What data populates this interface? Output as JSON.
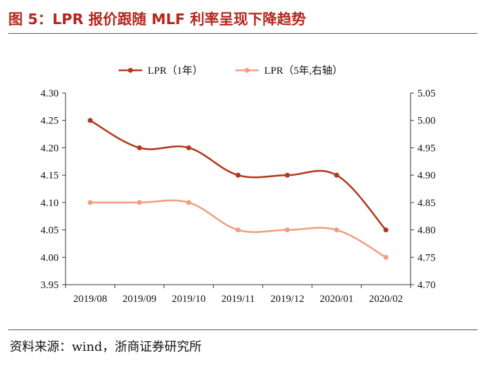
{
  "title": "图 5：LPR 报价跟随 MLF 利率呈现下降趋势",
  "source": "资料来源：wind，浙商证券研究所",
  "chart_data": {
    "type": "line",
    "categories": [
      "2019/08",
      "2019/09",
      "2019/10",
      "2019/11",
      "2019/12",
      "2020/01",
      "2020/02"
    ],
    "series": [
      {
        "name": "LPR（1年）",
        "axis": "left",
        "color": "#b03a1e",
        "values": [
          4.25,
          4.2,
          4.2,
          4.15,
          4.15,
          4.15,
          4.05
        ]
      },
      {
        "name": "LPR（5年,右轴）",
        "axis": "right",
        "color": "#f0a080",
        "values": [
          4.85,
          4.85,
          4.85,
          4.8,
          4.8,
          4.8,
          4.75
        ]
      }
    ],
    "left_axis": {
      "ylim": [
        3.95,
        4.3
      ],
      "ticks": [
        "3.95",
        "4.00",
        "4.05",
        "4.10",
        "4.15",
        "4.20",
        "4.25",
        "4.30"
      ]
    },
    "right_axis": {
      "ylim": [
        4.7,
        5.05
      ],
      "ticks": [
        "4.70",
        "4.75",
        "4.80",
        "4.85",
        "4.90",
        "4.95",
        "5.00",
        "5.05"
      ]
    },
    "legend_position": "top-center",
    "grid": false
  }
}
